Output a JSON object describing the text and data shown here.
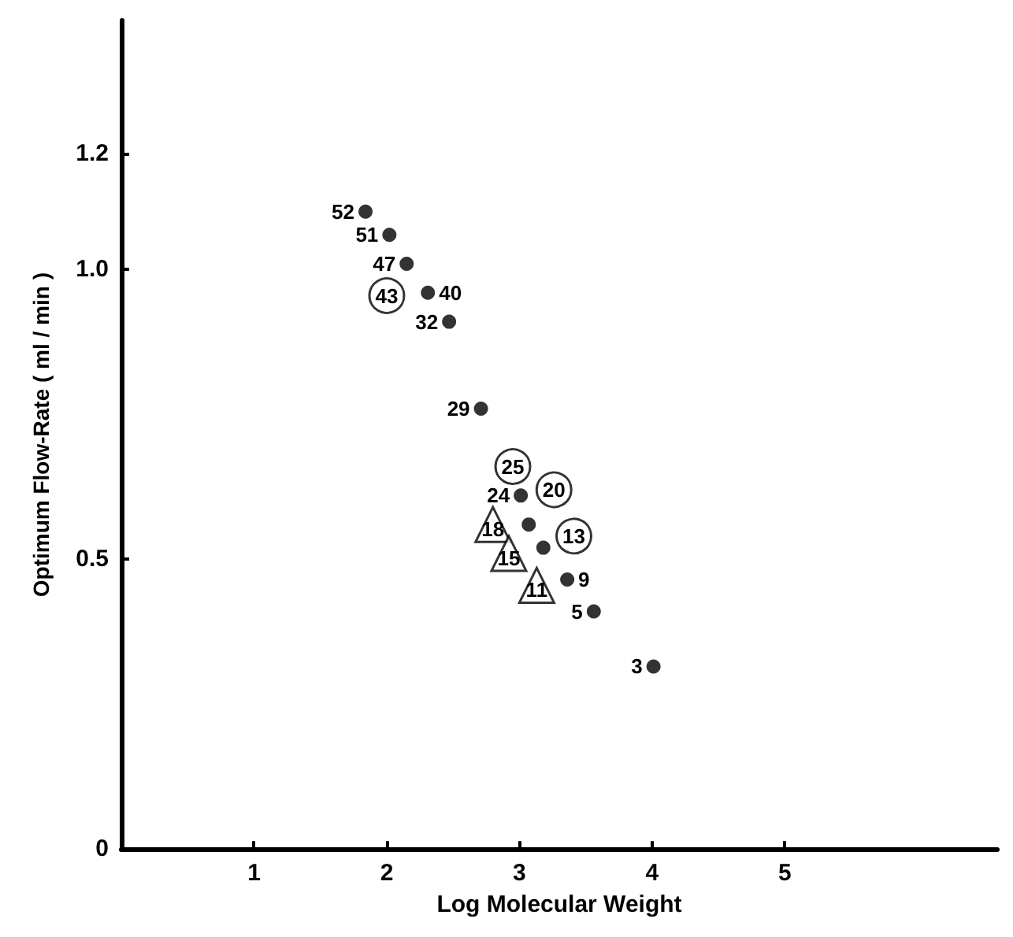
{
  "chart_data": {
    "type": "scatter",
    "xlabel": "Log Molecular Weight",
    "ylabel": "Optimum Flow-Rate ( ml / min )",
    "xlim": [
      0,
      6.6
    ],
    "xticks": [
      1,
      2,
      3,
      4,
      5
    ],
    "ylim": [
      0,
      1.43
    ],
    "yticks": [
      0,
      0.5,
      {
        "value": 1,
        "label": "1.0"
      },
      1.2
    ],
    "grid": false,
    "series": [
      {
        "color": "#000000",
        "marker": "circle",
        "x": [
          1.84,
          2.02,
          2.15,
          2.31,
          2.47,
          2.71,
          3.01,
          3.07,
          3.18,
          3.36,
          3.56,
          4.01
        ],
        "values": [
          1.1,
          1.06,
          1.01,
          0.96,
          0.91,
          0.76,
          0.61,
          0.56,
          0.52,
          0.465,
          0.41,
          0.315
        ]
      },
      {
        "color": "#ffffff",
        "marker": "circle",
        "x": [
          2.0,
          2.95,
          3.26,
          3.41
        ],
        "values": [
          0.955,
          0.66,
          0.62,
          0.54
        ]
      },
      {
        "color": "#ffffff",
        "marker": "triangle",
        "x": [
          2.8,
          2.92,
          3.13
        ],
        "values": [
          0.56,
          0.51,
          0.455
        ]
      }
    ],
    "annotations": [
      {
        "text": "52",
        "x": 1.84,
        "y": 1.1
      },
      {
        "text": "51",
        "x": 2.02,
        "y": 1.06
      },
      {
        "text": "47",
        "x": 2.15,
        "y": 1.01
      },
      {
        "text": "40",
        "x": 2.31,
        "y": 0.96
      },
      {
        "text": "32",
        "x": 2.47,
        "y": 0.91
      },
      {
        "text": "29",
        "x": 2.71,
        "y": 0.76
      },
      {
        "text": "24",
        "x": 3.01,
        "y": 0.61
      },
      {
        "text": "9",
        "x": 3.36,
        "y": 0.465
      },
      {
        "text": "5",
        "x": 3.56,
        "y": 0.41
      },
      {
        "text": "3",
        "x": 4.01,
        "y": 0.315
      },
      {
        "text": "43",
        "x": 2.0,
        "y": 0.955
      },
      {
        "text": "25",
        "x": 2.95,
        "y": 0.66
      },
      {
        "text": "20",
        "x": 3.26,
        "y": 0.62
      },
      {
        "text": "13",
        "x": 3.41,
        "y": 0.54
      },
      {
        "text": "18",
        "x": 2.8,
        "y": 0.56
      },
      {
        "text": "15",
        "x": 2.92,
        "y": 0.51
      },
      {
        "text": "11",
        "x": 3.13,
        "y": 0.455
      }
    ]
  }
}
